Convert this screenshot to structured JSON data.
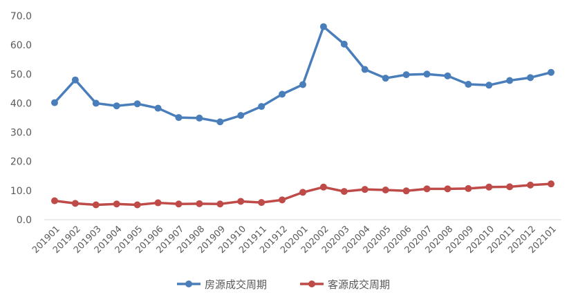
{
  "chart_data": {
    "type": "line",
    "title": "",
    "xlabel": "",
    "ylabel": "",
    "ylim": [
      0,
      70
    ],
    "yticks": [
      0,
      10,
      20,
      30,
      40,
      50,
      60,
      70
    ],
    "ytick_labels": [
      "0.0",
      "10.0",
      "20.0",
      "30.0",
      "40.0",
      "50.0",
      "60.0",
      "70.0"
    ],
    "grid": false,
    "legend_position": "bottom",
    "categories": [
      "201901",
      "201902",
      "201903",
      "201904",
      "201905",
      "201906",
      "201907",
      "201908",
      "201909",
      "201910",
      "201911",
      "201912",
      "202001",
      "202002",
      "202003",
      "202004",
      "202005",
      "202006",
      "202007",
      "202008",
      "202009",
      "202010",
      "202011",
      "202012",
      "202101"
    ],
    "series": [
      {
        "name": "房源成交周期",
        "color": "#4a7ebb",
        "values": [
          40.2,
          48.0,
          40.0,
          39.1,
          39.8,
          38.3,
          35.1,
          34.9,
          33.6,
          35.8,
          38.9,
          43.1,
          46.4,
          66.3,
          60.3,
          51.6,
          48.6,
          49.8,
          50.0,
          49.4,
          46.5,
          46.2,
          47.8,
          48.8,
          50.6
        ]
      },
      {
        "name": "客源成交周期",
        "color": "#be4b48",
        "values": [
          6.5,
          5.6,
          5.1,
          5.4,
          5.1,
          5.8,
          5.4,
          5.5,
          5.4,
          6.3,
          5.9,
          6.8,
          9.4,
          11.2,
          9.7,
          10.4,
          10.2,
          9.9,
          10.6,
          10.6,
          10.7,
          11.2,
          11.3,
          11.9,
          12.3
        ]
      }
    ]
  }
}
